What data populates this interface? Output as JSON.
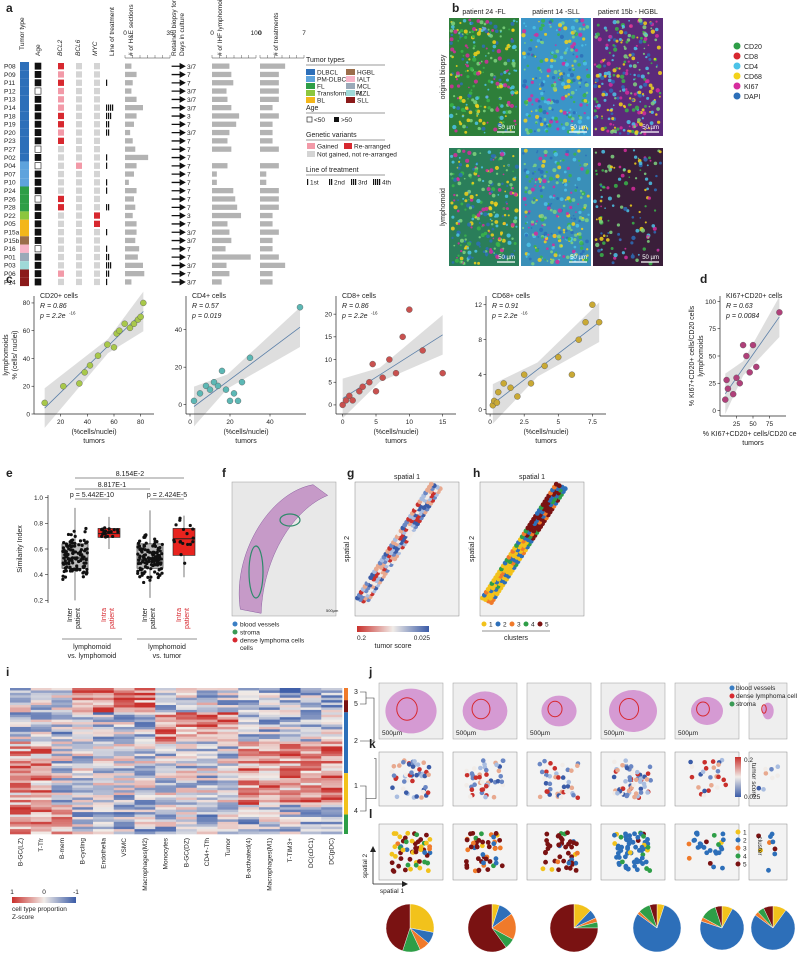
{
  "panel_letters": [
    "a",
    "b",
    "c",
    "d",
    "e",
    "f",
    "g",
    "h",
    "i",
    "j",
    "k",
    "l"
  ],
  "colors": {
    "DLBCL": "#2d6fb9",
    "PM-DLBCL": "#5ea3dd",
    "FL": "#2e9e47",
    "Transformed FL": "#8cc63e",
    "BL": "#f3b61b",
    "HGBL": "#9b6d4a",
    "IALT": "#f8b4c8",
    "MCL": "#9aa9b8",
    "MZL": "#9fd9d8",
    "SLL": "#8b1a1a",
    "gained": "#f29aa8",
    "rearranged": "#d7282f",
    "neither": "#d4d4d4",
    "bar": "#b3b3b3"
  },
  "panel_a": {
    "col_headers": [
      "Tumor type",
      "Age",
      "BCL2",
      "BCL6",
      "MYC",
      "Line of treatment",
      "# of H&E sections",
      "Retained biopsy for multiplex",
      "Days in culture",
      "# of IHF lymphomoid sections",
      "# of treatments"
    ],
    "he_axis": [
      "0",
      "35"
    ],
    "ihf_axis": [
      "0",
      "100"
    ],
    "trt_axis": [
      "0",
      "7"
    ],
    "patients": [
      "P08",
      "P09",
      "P11",
      "P12",
      "P13",
      "P14",
      "P18",
      "P19",
      "P20",
      "P23",
      "P27",
      "P02",
      "P04",
      "P07",
      "P10",
      "P24",
      "P26",
      "P28",
      "P22",
      "P05",
      "P15a",
      "P15b",
      "P16",
      "P01",
      "P03",
      "P06",
      "P14"
    ],
    "days": [
      "3/7",
      "7",
      "7",
      "3/7",
      "3/7",
      "3/7",
      "3",
      "7",
      "3/7",
      "7",
      "7",
      "7",
      "7",
      "7",
      "7",
      "7",
      "7",
      "7",
      "3",
      "7",
      "3/7",
      "3/7",
      "7",
      "7",
      "3/7",
      "7",
      "3/7"
    ],
    "tumor_type_idx": [
      0,
      0,
      0,
      0,
      0,
      0,
      0,
      0,
      0,
      0,
      0,
      0,
      1,
      1,
      1,
      2,
      2,
      2,
      3,
      4,
      4,
      5,
      6,
      7,
      8,
      9,
      9
    ],
    "age_old": [
      1,
      1,
      1,
      0,
      1,
      1,
      1,
      1,
      1,
      1,
      0,
      1,
      0,
      1,
      1,
      1,
      0,
      1,
      1,
      1,
      1,
      1,
      0,
      1,
      1,
      1,
      1
    ],
    "genetics": [
      [
        2,
        0,
        0
      ],
      [
        1,
        0,
        0
      ],
      [
        2,
        0,
        0
      ],
      [
        1,
        0,
        0
      ],
      [
        1,
        0,
        0
      ],
      [
        1,
        0,
        0
      ],
      [
        2,
        0,
        0
      ],
      [
        2,
        0,
        0
      ],
      [
        1,
        0,
        0
      ],
      [
        2,
        0,
        0
      ],
      [
        0,
        0,
        0
      ],
      [
        0,
        0,
        0
      ],
      [
        0,
        1,
        0
      ],
      [
        0,
        0,
        0
      ],
      [
        0,
        0,
        0
      ],
      [
        0,
        0,
        0
      ],
      [
        2,
        0,
        0
      ],
      [
        2,
        0,
        0
      ],
      [
        0,
        0,
        2
      ],
      [
        0,
        0,
        2
      ],
      [
        0,
        0,
        0
      ],
      [
        0,
        0,
        0
      ],
      [
        0,
        0,
        0
      ],
      [
        0,
        0,
        0
      ],
      [
        0,
        0,
        0
      ],
      [
        1,
        0,
        0
      ],
      [
        0,
        0,
        0
      ]
    ],
    "treatment_line": [
      0,
      0,
      1,
      0,
      0,
      4,
      3,
      2,
      2,
      0,
      0,
      1,
      1,
      0,
      1,
      1,
      0,
      2,
      0,
      0,
      1,
      0,
      1,
      2,
      3,
      2,
      1
    ],
    "he_sections": [
      5,
      9,
      6,
      5,
      9,
      14,
      9,
      7,
      4,
      6,
      8,
      18,
      9,
      7,
      3,
      9,
      7,
      8,
      6,
      9,
      9,
      8,
      11,
      10,
      14,
      15,
      5
    ],
    "ihf_sections": [
      18,
      20,
      22,
      15,
      16,
      20,
      28,
      25,
      18,
      16,
      20,
      0,
      16,
      5,
      5,
      22,
      24,
      26,
      30,
      16,
      18,
      20,
      14,
      40,
      15,
      18,
      10
    ],
    "treatments": [
      4,
      3,
      3,
      3,
      3,
      2,
      3,
      2,
      2,
      2,
      3,
      0,
      3,
      1,
      1,
      3,
      3,
      3,
      2,
      2,
      3,
      2,
      2,
      3,
      4,
      2,
      2
    ]
  },
  "legend_a": {
    "tumor_title": "Tumor types",
    "tumor_types": [
      "DLBCL",
      "PM-DLBCL",
      "FL",
      "Transformed FL",
      "BL",
      "HGBL",
      "IALT",
      "MCL",
      "MZL",
      "SLL"
    ],
    "age_title": "Age",
    "age_young": "<50",
    "age_old": ">50",
    "gen_title": "Genetic variants",
    "gen_gained": "Gained",
    "gen_rearr": "Re-arranged",
    "gen_none": "Not gained, not re-arranged",
    "line_title": "Line of treatment",
    "lines": [
      "1st",
      "2nd",
      "3rd",
      "4th"
    ]
  },
  "panel_b": {
    "cols": [
      "patient 24 -FL",
      "patient 14 -SLL",
      "patient 15b - HGBL"
    ],
    "rows": [
      "original biopsy",
      "lymphomoid"
    ],
    "scale": "50 µm",
    "markers": [
      [
        "CD20",
        "#2e9e47"
      ],
      [
        "CD8",
        "#d7282f"
      ],
      [
        "CD4",
        "#4cc3e8"
      ],
      [
        "CD68",
        "#f3d21b"
      ],
      [
        "KI67",
        "#d62d9e"
      ],
      [
        "DAPI",
        "#2d6fb9"
      ]
    ]
  },
  "chart_data": [
    {
      "type": "scatter",
      "title": "CD20+ cells",
      "r": "R = 0.86",
      "p": "p = 2.2e",
      "p_exp": "-16",
      "ylabel": "lymphomoids\n% (cells/ nuclei)",
      "xlabel": "(%cells/nuclei)\ntumors",
      "color": "#a8c84a",
      "xlim": [
        0,
        90
      ],
      "ylim": [
        0,
        85
      ],
      "xticks": [
        20,
        40,
        60,
        80
      ],
      "yticks": [
        0,
        20,
        40,
        60,
        80
      ],
      "x": [
        8,
        22,
        34,
        38,
        42,
        48,
        55,
        60,
        62,
        64,
        68,
        72,
        75,
        78,
        80,
        82
      ],
      "y": [
        8,
        20,
        22,
        30,
        35,
        42,
        50,
        48,
        58,
        60,
        65,
        62,
        65,
        68,
        70,
        80
      ]
    },
    {
      "type": "scatter",
      "title": "CD4+ cells",
      "r": "R = 0.57",
      "p": "p = 0.019",
      "ylabel": "",
      "xlabel": "(%cells/nuclei)\ntumors",
      "color": "#5cb8b5",
      "xlim": [
        -2,
        58
      ],
      "ylim": [
        -5,
        58
      ],
      "xticks": [
        0,
        20,
        40
      ],
      "yticks": [
        0,
        20,
        40
      ],
      "x": [
        2,
        5,
        8,
        10,
        12,
        14,
        16,
        18,
        20,
        22,
        24,
        26,
        30,
        55
      ],
      "y": [
        2,
        6,
        10,
        8,
        12,
        10,
        18,
        8,
        2,
        6,
        2,
        12,
        25,
        52
      ]
    },
    {
      "type": "scatter",
      "title": "CD8+ cells",
      "r": "R = 0.86",
      "p": "p = 2.2e",
      "p_exp": "-16",
      "ylabel": "",
      "xlabel": "(%cells/nuclei)\ntumors",
      "color": "#c9514f",
      "xlim": [
        -1,
        17
      ],
      "ylim": [
        -2,
        24
      ],
      "xticks": [
        0,
        5,
        10,
        15
      ],
      "yticks": [
        0,
        5,
        10,
        15,
        20
      ],
      "x": [
        0,
        0.5,
        1,
        1.5,
        2.5,
        3,
        4,
        4.5,
        5,
        6,
        7,
        8,
        9,
        10,
        12,
        15
      ],
      "y": [
        0,
        1,
        2,
        1,
        3,
        4,
        5,
        9,
        3,
        6,
        10,
        7,
        15,
        21,
        12,
        7
      ]
    },
    {
      "type": "scatter",
      "title": "CD68+ cells",
      "r": "R = 0.91",
      "p": "p = 2.2e",
      "p_exp": "-16",
      "ylabel": "",
      "xlabel": "(%cells/nuclei)\ntumors",
      "color": "#c9a935",
      "xlim": [
        -0.3,
        8.5
      ],
      "ylim": [
        -0.5,
        13
      ],
      "xticks": [
        0,
        2.5,
        5,
        7.5
      ],
      "yticks": [
        0,
        4,
        8,
        12
      ],
      "x": [
        0.2,
        0.3,
        0.5,
        0.6,
        1,
        1.5,
        2,
        2.5,
        3,
        4,
        5,
        6,
        6.5,
        7,
        7.5,
        8
      ],
      "y": [
        0.5,
        1,
        0.8,
        2,
        3,
        2.5,
        1.5,
        4,
        3,
        5,
        6,
        4,
        8,
        10,
        12,
        10
      ]
    },
    {
      "type": "scatter",
      "title": "KI67+CD20+ cells",
      "r": "R = 0.63",
      "p": "p = 0.0084",
      "ylabel": "% KI67+CD20+ cells/CD20 cells\nlymphomoids",
      "xlabel": "% KI67+CD20+ cells/CD20 cells\ntumors",
      "color": "#b0407a",
      "xlim": [
        0,
        100
      ],
      "ylim": [
        -5,
        105
      ],
      "xticks": [
        25,
        50,
        75
      ],
      "yticks": [
        0,
        25,
        50,
        75,
        100
      ],
      "x": [
        8,
        10,
        12,
        20,
        25,
        30,
        35,
        40,
        45,
        50,
        55,
        90
      ],
      "y": [
        10,
        28,
        20,
        15,
        30,
        25,
        60,
        50,
        35,
        60,
        40,
        90
      ]
    }
  ],
  "panel_e": {
    "ylabel": "Similarity Index",
    "yticks": [
      "0.2",
      "0.4",
      "0.6",
      "0.8",
      "1.0"
    ],
    "groups": [
      "Inter patient",
      "Intra patient",
      "Inter patient",
      "Intra patient"
    ],
    "group_labels": [
      "lymphomoid vs. lymphomoid",
      "lymphomoid vs. tumor"
    ],
    "pvals": [
      "p = 5.442E-10",
      "8.817E-1",
      "p = 2.424E-5",
      "8.154E-2"
    ],
    "boxes": [
      {
        "q1": 0.45,
        "med": 0.53,
        "q3": 0.64,
        "lo": 0.2,
        "hi": 0.92,
        "fill": "#bbbbbb"
      },
      {
        "q1": 0.69,
        "med": 0.72,
        "q3": 0.76,
        "lo": 0.6,
        "hi": 0.85,
        "fill": "#e8231e"
      },
      {
        "q1": 0.45,
        "med": 0.52,
        "q3": 0.64,
        "lo": 0.22,
        "hi": 0.9,
        "fill": "#bbbbbb"
      },
      {
        "q1": 0.55,
        "med": 0.68,
        "q3": 0.76,
        "lo": 0.38,
        "hi": 0.86,
        "fill": "#e8231e"
      }
    ]
  },
  "panel_f": {
    "legend": [
      "blood vessels",
      "stroma",
      "dense lymphoma cells"
    ],
    "legend_colors": [
      "#3a7ec4",
      "#3a9a55",
      "#d7282f"
    ],
    "scale": "500µm"
  },
  "panel_g": {
    "title": "spatial 1",
    "ylabel": "spatial 2",
    "cbar_min": "0.2",
    "cbar_max": "0.025",
    "cbar_label": "tumor score"
  },
  "panel_h": {
    "title": "spatial 1",
    "ylabel": "spatial 2",
    "clusters": [
      "1",
      "2",
      "3",
      "4",
      "5"
    ],
    "cluster_colors": [
      "#f2c21b",
      "#2d6fb9",
      "#f07a2a",
      "#2e9e47",
      "#7a1212"
    ],
    "xlabel": "clusters"
  },
  "panel_i": {
    "columns": [
      "B-GC(LZ)",
      "T-Tfr",
      "B-mem",
      "B-cycling",
      "Endothelia",
      "VSMC",
      "Macrophages(M2)",
      "Monocytes",
      "B-GC(DZ)",
      "CD4+-Tfh",
      "Tumor",
      "B-activated(4)",
      "Macrophages(M1)",
      "T-TIM3+",
      "DC(cDC1)",
      "DC(pDC)"
    ],
    "row_clusters": [
      "3",
      "5",
      "2",
      "1",
      "4"
    ],
    "legend_ticks": [
      "1",
      "0",
      "-1"
    ],
    "legend_title": "cell type proportion\nZ-score"
  },
  "panel_j": {
    "legend": [
      "blood vessels",
      "dense lymphoma cells",
      "stroma"
    ],
    "legend_colors": [
      "#3a7ec4",
      "#d7282f",
      "#3a9a55"
    ],
    "scale": "500µm"
  },
  "panel_k": {
    "cbar_max": "0.2",
    "cbar_min": "0.025",
    "cbar_label": "tumor score"
  },
  "panel_l": {
    "clusters": [
      "1",
      "2",
      "3",
      "4",
      "5"
    ],
    "legend_title": "cluster",
    "xlabel": "spatial 1",
    "ylabel": "spatial 2",
    "pies": [
      [
        0.28,
        0.08,
        0.07,
        0.12,
        0.45
      ],
      [
        0.05,
        0.1,
        0.18,
        0.07,
        0.6
      ],
      [
        0.12,
        0.06,
        0.03,
        0.04,
        0.75
      ],
      [
        0.05,
        0.8,
        0.02,
        0.08,
        0.05
      ],
      [
        0.08,
        0.72,
        0.03,
        0.12,
        0.05
      ],
      [
        0.1,
        0.75,
        0.03,
        0.05,
        0.07
      ]
    ]
  }
}
